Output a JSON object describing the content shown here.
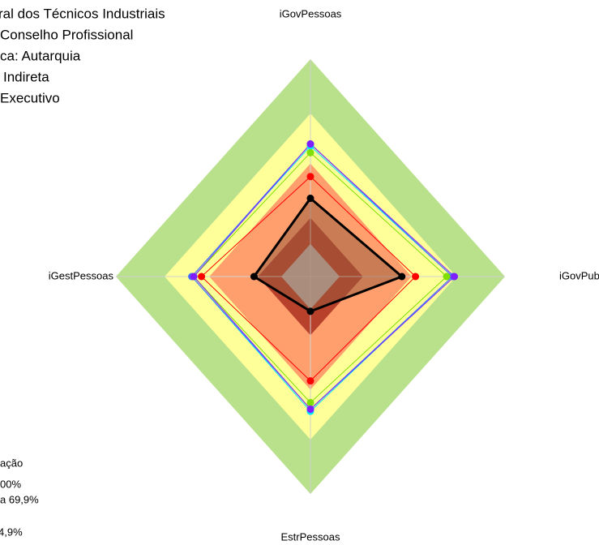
{
  "chart_data": {
    "type": "radar",
    "title_lines": [
      "ral dos Técnicos Industriais",
      "Conselho Profissional",
      "ca: Autarquia",
      "Indireta",
      "Executivo"
    ],
    "legend_lines": [
      "ação",
      "00%",
      "a 69,9%",
      "4,9%"
    ],
    "categories": [
      "iGovPessoas",
      "iGovPub",
      "EstrPessoas",
      "iGestPessoas"
    ],
    "rlim": [
      0,
      100
    ],
    "series": [
      {
        "color": "#00e5ff",
        "values": [
          60,
          73,
          62,
          61
        ]
      },
      {
        "color": "#4a6cff",
        "values": [
          61,
          73,
          61,
          61
        ]
      },
      {
        "color": "#7fe000",
        "values": [
          57,
          70,
          58,
          60
        ]
      },
      {
        "color": "#7f1fff",
        "values": [
          61,
          74,
          61,
          60
        ]
      },
      {
        "color": "#ff0000",
        "values": [
          46,
          54,
          48,
          56
        ]
      },
      {
        "color": "#000000",
        "values": [
          36,
          47,
          16,
          29
        ]
      }
    ]
  }
}
